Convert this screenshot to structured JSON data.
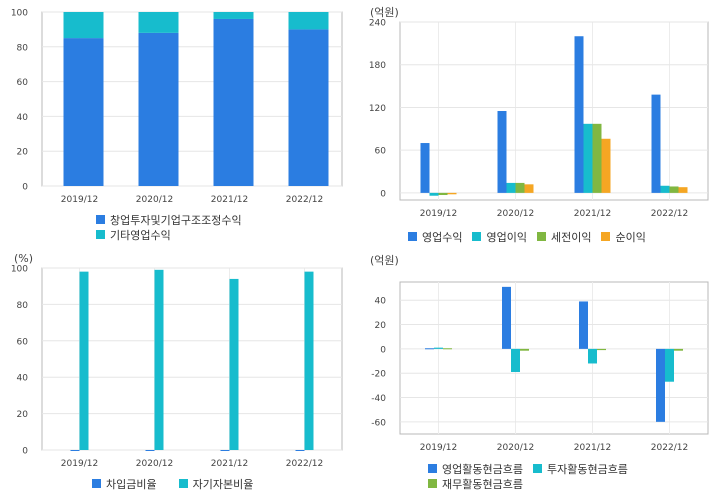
{
  "chart_data": [
    {
      "id": "revenue-composition",
      "type": "bar",
      "stacked": true,
      "unit": "",
      "categories": [
        "2019/12",
        "2020/12",
        "2021/12",
        "2022/12"
      ],
      "series": [
        {
          "name": "창업투자및기업구조조정수익",
          "color": "#2b7de1",
          "values": [
            85,
            88,
            96,
            90
          ]
        },
        {
          "name": "기타영업수익",
          "color": "#17bccd",
          "values": [
            15,
            12,
            4,
            10
          ]
        }
      ],
      "ylim": [
        0,
        100
      ],
      "yticks": [
        0,
        20,
        40,
        60,
        80,
        100
      ],
      "grid": true,
      "legend": "bottom"
    },
    {
      "id": "earnings",
      "type": "bar",
      "unit": "(억원)",
      "categories": [
        "2019/12",
        "2020/12",
        "2021/12",
        "2022/12"
      ],
      "series": [
        {
          "name": "영업수익",
          "color": "#2b7de1",
          "values": [
            70,
            115,
            220,
            138
          ]
        },
        {
          "name": "영업이익",
          "color": "#17bccd",
          "values": [
            -4,
            14,
            97,
            10
          ]
        },
        {
          "name": "세전이익",
          "color": "#80b741",
          "values": [
            -3,
            14,
            97,
            9
          ]
        },
        {
          "name": "순이익",
          "color": "#f5a623",
          "values": [
            -2,
            12,
            76,
            8
          ]
        }
      ],
      "ylim": [
        -10,
        240
      ],
      "yticks": [
        0,
        60,
        120,
        180,
        240
      ],
      "grid": true,
      "legend": "bottom"
    },
    {
      "id": "ratios",
      "type": "bar",
      "unit": "(%)",
      "categories": [
        "2019/12",
        "2020/12",
        "2021/12",
        "2022/12"
      ],
      "series": [
        {
          "name": "차입금비율",
          "color": "#2b7de1",
          "values": [
            0,
            0,
            0,
            0
          ]
        },
        {
          "name": "자기자본비율",
          "color": "#17bccd",
          "values": [
            98,
            99,
            94,
            98
          ]
        }
      ],
      "ylim": [
        0,
        100
      ],
      "yticks": [
        0,
        20,
        40,
        60,
        80,
        100
      ],
      "grid": true,
      "legend": "bottom"
    },
    {
      "id": "cashflow",
      "type": "bar",
      "unit": "(억원)",
      "categories": [
        "2019/12",
        "2020/12",
        "2021/12",
        "2022/12"
      ],
      "series": [
        {
          "name": "영업활동현금흐름",
          "color": "#2b7de1",
          "values": [
            0.5,
            51,
            39,
            -60
          ]
        },
        {
          "name": "투자활동현금흐름",
          "color": "#17bccd",
          "values": [
            1,
            -19,
            -12,
            -27
          ]
        },
        {
          "name": "재무활동현금흐름",
          "color": "#80b741",
          "values": [
            0.5,
            -1.5,
            -1,
            -1.5
          ]
        }
      ],
      "ylim": [
        -70,
        55
      ],
      "yticks": [
        -60,
        -40,
        -20,
        0,
        20,
        40
      ],
      "grid": true,
      "legend": "bottom"
    }
  ]
}
